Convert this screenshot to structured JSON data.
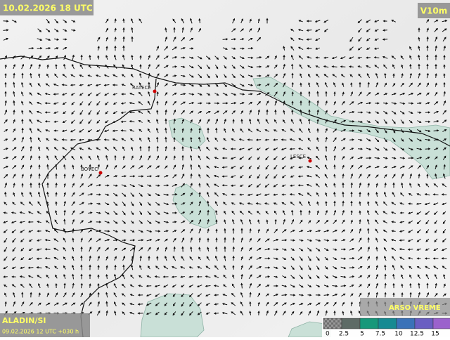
{
  "header": {
    "valid_time": "10.02.2026 18 UTC",
    "variable": "V10m"
  },
  "places": [
    {
      "label": "RATECE"
    },
    {
      "label": "BOVEC"
    },
    {
      "label": "LESCE"
    }
  ],
  "footer": {
    "model": "ALADIN/SI",
    "run": "09.02.2026 12 UTC +030 h",
    "brand": "ARSO VREME"
  },
  "legend": {
    "ticks": [
      0,
      2.5,
      5,
      7.5,
      10,
      12.5,
      15
    ],
    "colors": [
      "#8f8f8f",
      "#5e6b66",
      "#17987a",
      "#168a92",
      "#3a72b8",
      "#6a5ec2",
      "#9b62cc"
    ]
  }
}
